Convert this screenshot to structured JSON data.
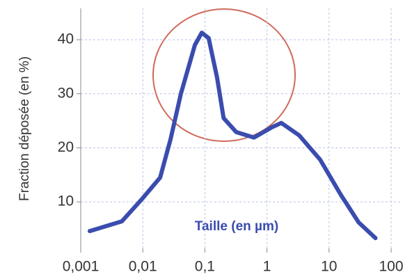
{
  "chart_data": {
    "type": "line",
    "ylabel": "Fraction déposée (en %)",
    "annotation": "Taille (en µm)",
    "x": [
      0.0014,
      0.0046,
      0.01,
      0.019,
      0.028,
      0.041,
      0.069,
      0.089,
      0.115,
      0.157,
      0.2,
      0.32,
      0.62,
      1.2,
      1.7,
      3.3,
      7.2,
      15.5,
      30,
      56
    ],
    "values": [
      4.6,
      6.4,
      10.7,
      14.5,
      21.6,
      30,
      39,
      41.3,
      40.3,
      33,
      25.5,
      22.9,
      21.9,
      23.8,
      24.6,
      22.3,
      17.8,
      11.3,
      6.2,
      3.3
    ],
    "color": "#3a4cae",
    "xscale": "log",
    "xlim": [
      0.001,
      100
    ],
    "xticks": [
      {
        "value": 0.001,
        "label": "0,001"
      },
      {
        "value": 0.01,
        "label": "0,01"
      },
      {
        "value": 0.1,
        "label": "0,1"
      },
      1,
      10,
      100
    ],
    "ylim": [
      1.4,
      45.8
    ],
    "yticks": [
      10,
      20,
      30,
      40
    ],
    "grid": true
  }
}
